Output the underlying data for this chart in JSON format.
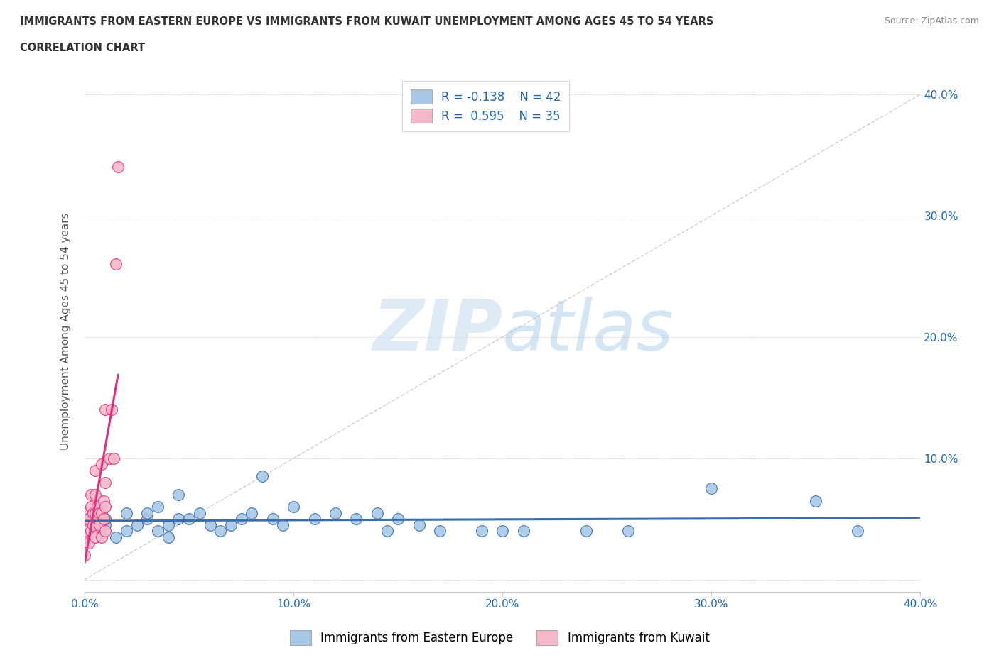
{
  "title_line1": "IMMIGRANTS FROM EASTERN EUROPE VS IMMIGRANTS FROM KUWAIT UNEMPLOYMENT AMONG AGES 45 TO 54 YEARS",
  "title_line2": "CORRELATION CHART",
  "source": "Source: ZipAtlas.com",
  "ylabel": "Unemployment Among Ages 45 to 54 years",
  "legend_label1": "Immigrants from Eastern Europe",
  "legend_label2": "Immigrants from Kuwait",
  "R1": -0.138,
  "N1": 42,
  "R2": 0.595,
  "N2": 35,
  "color_blue": "#a8c8e8",
  "color_pink": "#f4b8c8",
  "color_blue_line": "#3a6eaa",
  "color_pink_line": "#e03080",
  "watermark_ZIP": "ZIP",
  "watermark_atlas": "atlas",
  "xlim": [
    0.0,
    0.4
  ],
  "ylim": [
    -0.01,
    0.42
  ],
  "xticks": [
    0.0,
    0.1,
    0.2,
    0.3,
    0.4
  ],
  "yticks": [
    0.0,
    0.1,
    0.2,
    0.3,
    0.4
  ],
  "xticklabels": [
    "0.0%",
    "10.0%",
    "20.0%",
    "30.0%",
    "40.0%"
  ],
  "yticklabels": [
    "",
    "10.0%",
    "20.0%",
    "30.0%",
    "40.0%"
  ],
  "blue_x": [
    0.005,
    0.01,
    0.01,
    0.015,
    0.02,
    0.02,
    0.025,
    0.03,
    0.03,
    0.035,
    0.035,
    0.04,
    0.04,
    0.045,
    0.045,
    0.05,
    0.055,
    0.06,
    0.065,
    0.07,
    0.075,
    0.08,
    0.085,
    0.09,
    0.095,
    0.1,
    0.11,
    0.12,
    0.13,
    0.14,
    0.145,
    0.15,
    0.16,
    0.17,
    0.19,
    0.2,
    0.21,
    0.24,
    0.26,
    0.3,
    0.35,
    0.37
  ],
  "blue_y": [
    0.04,
    0.045,
    0.05,
    0.035,
    0.055,
    0.04,
    0.045,
    0.05,
    0.055,
    0.04,
    0.06,
    0.045,
    0.035,
    0.05,
    0.07,
    0.05,
    0.055,
    0.045,
    0.04,
    0.045,
    0.05,
    0.055,
    0.085,
    0.05,
    0.045,
    0.06,
    0.05,
    0.055,
    0.05,
    0.055,
    0.04,
    0.05,
    0.045,
    0.04,
    0.04,
    0.04,
    0.04,
    0.04,
    0.04,
    0.075,
    0.065,
    0.04
  ],
  "pink_x": [
    0.0,
    0.0,
    0.0,
    0.0,
    0.0,
    0.0,
    0.002,
    0.002,
    0.003,
    0.003,
    0.003,
    0.004,
    0.004,
    0.005,
    0.005,
    0.005,
    0.005,
    0.006,
    0.006,
    0.007,
    0.007,
    0.008,
    0.008,
    0.008,
    0.009,
    0.009,
    0.01,
    0.01,
    0.01,
    0.01,
    0.012,
    0.013,
    0.014,
    0.015,
    0.016
  ],
  "pink_y": [
    0.02,
    0.03,
    0.035,
    0.04,
    0.05,
    0.055,
    0.03,
    0.05,
    0.04,
    0.06,
    0.07,
    0.045,
    0.055,
    0.035,
    0.055,
    0.07,
    0.09,
    0.05,
    0.06,
    0.045,
    0.055,
    0.035,
    0.055,
    0.095,
    0.05,
    0.065,
    0.04,
    0.06,
    0.08,
    0.14,
    0.1,
    0.14,
    0.1,
    0.26,
    0.34
  ]
}
